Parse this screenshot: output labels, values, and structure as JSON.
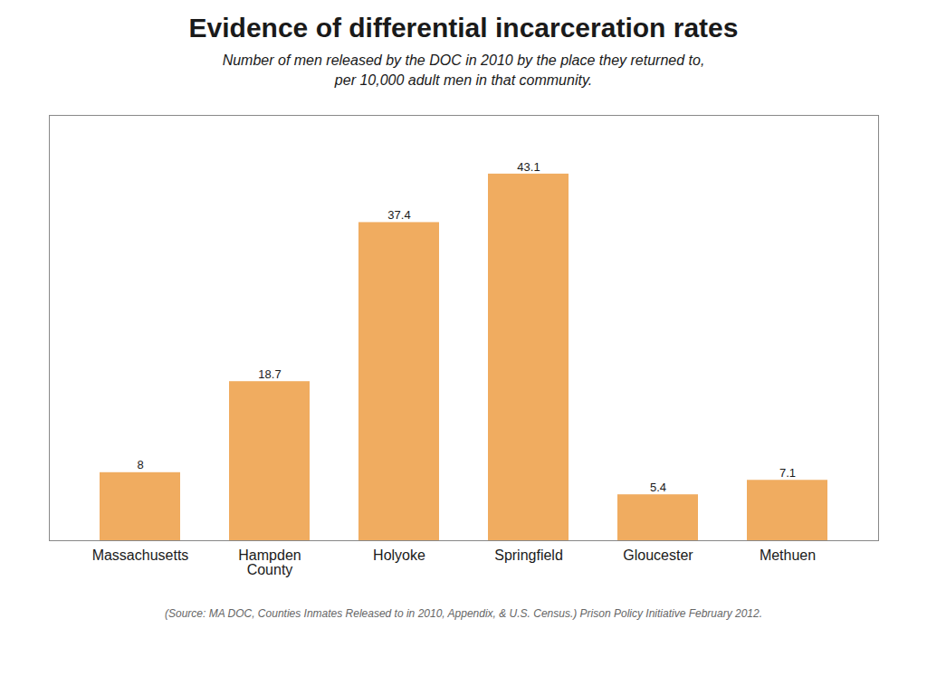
{
  "chart_data": {
    "type": "bar",
    "title": "Evidence of differential incarceration rates",
    "subtitle": "Number of men released by the DOC in 2010 by the place they returned to,\nper 10,000 adult men in that community.",
    "source": "(Source: MA DOC, Counties Inmates Released to in 2010, Appendix, & U.S. Census.) Prison Policy Initiative February 2012.",
    "categories": [
      "Massachusetts",
      "Hampden\nCounty",
      "Holyoke",
      "Springfield",
      "Gloucester",
      "Methuen"
    ],
    "values": [
      8,
      18.7,
      37.4,
      43.1,
      5.4,
      7.1
    ],
    "color": "#F0AC60",
    "ylim": [
      0,
      50
    ],
    "data_labels": true,
    "tick_labels": "x",
    "grid": false
  }
}
